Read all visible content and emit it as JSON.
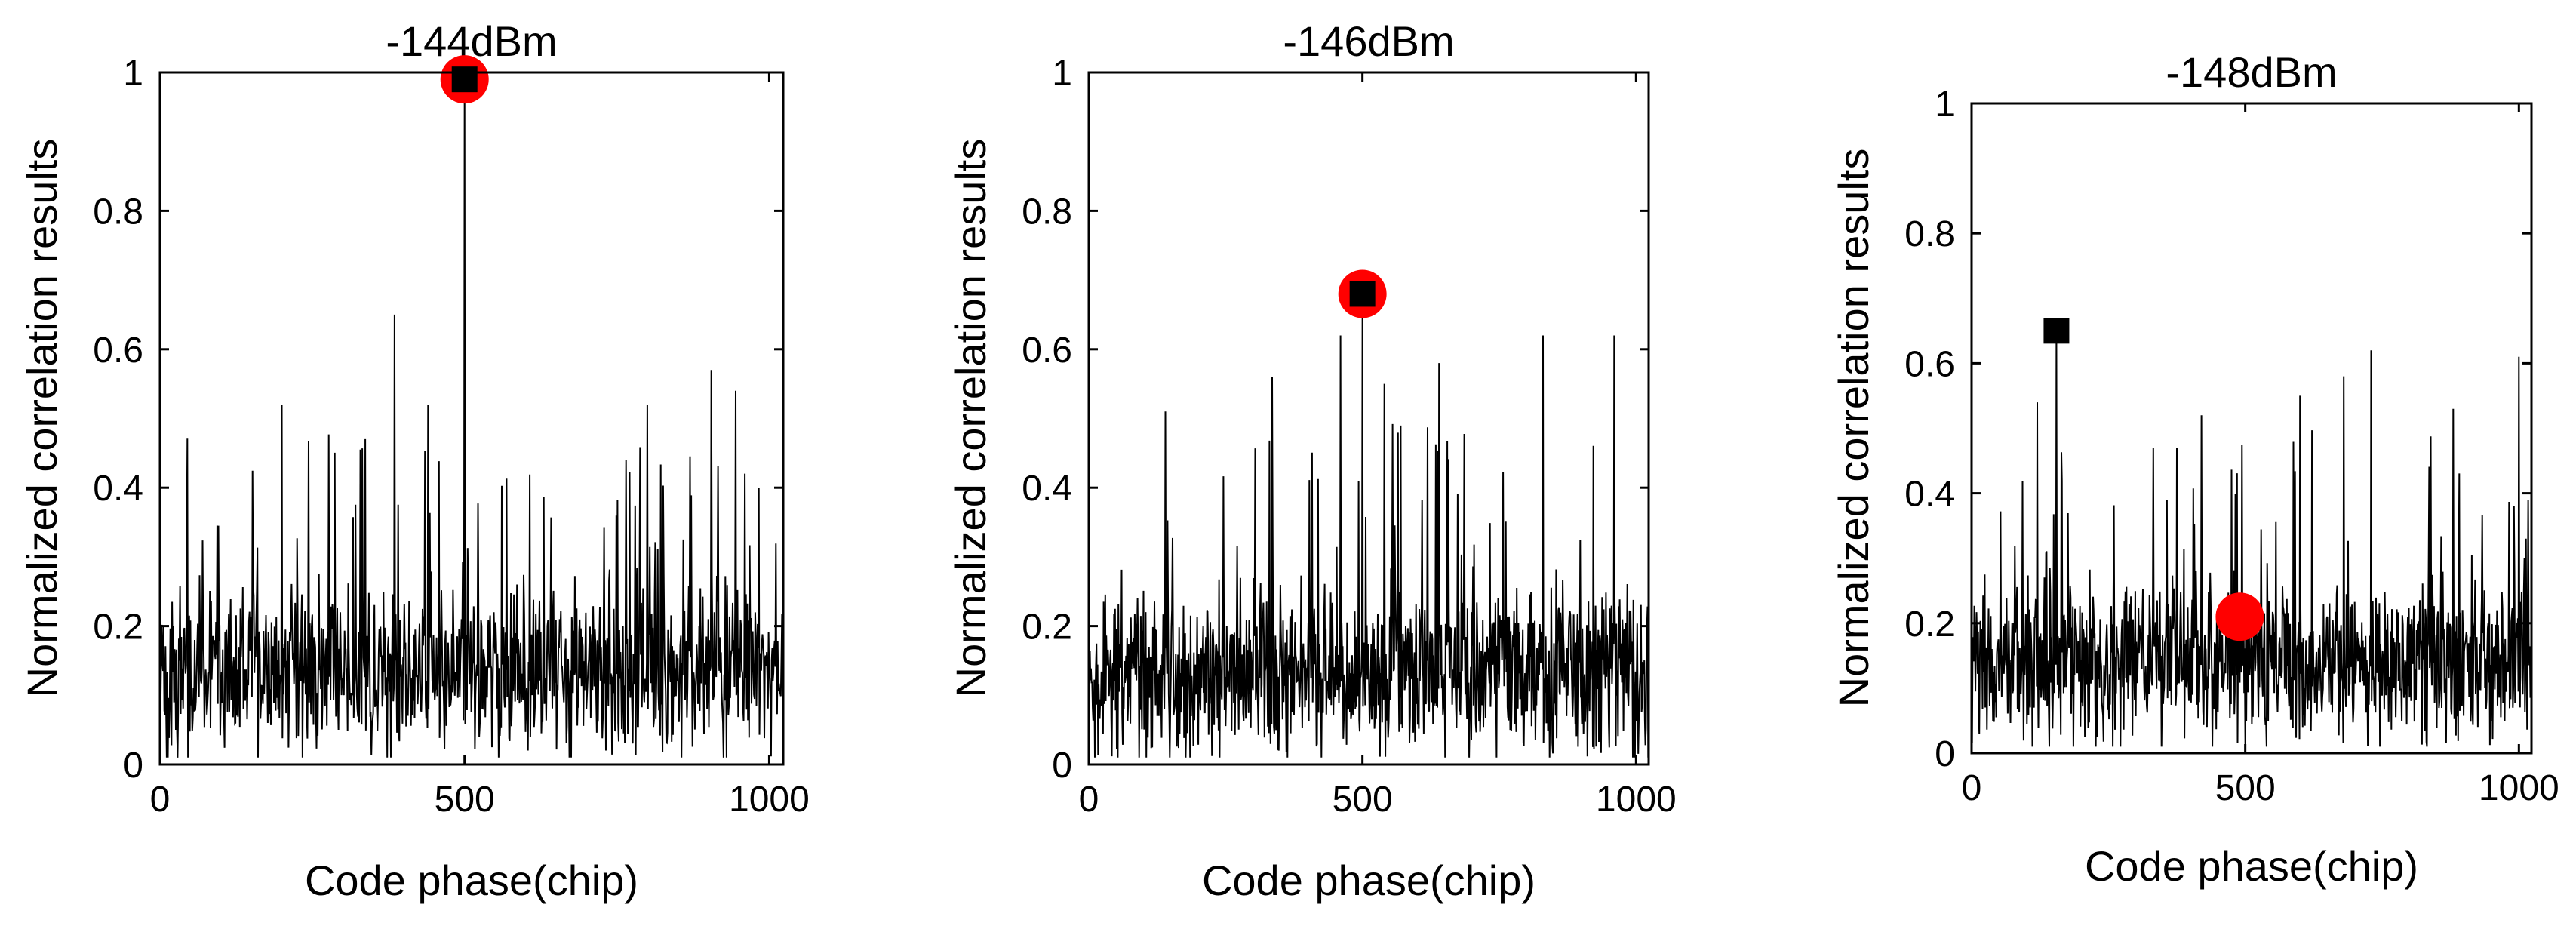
{
  "chart_data": [
    {
      "type": "line",
      "title": "-144dBm",
      "xlabel": "Code phase(chip)",
      "ylabel": "Normalized correlation results",
      "xlim": [
        0,
        1023
      ],
      "ylim": [
        0,
        1
      ],
      "xticks": [
        "0",
        "500",
        "1000"
      ],
      "yticks": [
        "0",
        "0.2",
        "0.4",
        "0.6",
        "0.8",
        "1"
      ],
      "grid": false,
      "noise": {
        "seed": 144,
        "baseline": 0.13,
        "spread": 0.09,
        "spike_rate": 0.06,
        "spike_max": 0.53
      },
      "spikes": [
        {
          "x": 200,
          "y": 0.52
        },
        {
          "x": 385,
          "y": 0.65
        },
        {
          "x": 440,
          "y": 0.52
        },
        {
          "x": 800,
          "y": 0.52
        },
        {
          "x": 905,
          "y": 0.57
        },
        {
          "x": 945,
          "y": 0.54
        }
      ],
      "peak": {
        "x": 500,
        "y": 0.99
      },
      "square_marker": {
        "x": 500,
        "y": 0.99,
        "color": "#000000"
      },
      "circle_marker": {
        "x": 500,
        "y": 0.99,
        "color": "#ff0000"
      }
    },
    {
      "type": "line",
      "title": "-146dBm",
      "xlabel": "Code phase(chip)",
      "ylabel": "Normalized correlation results",
      "xlim": [
        0,
        1023
      ],
      "ylim": [
        0,
        1
      ],
      "xticks": [
        "0",
        "500",
        "1000"
      ],
      "yticks": [
        "0",
        "0.2",
        "0.4",
        "0.6",
        "0.8",
        "1"
      ],
      "grid": false,
      "noise": {
        "seed": 146,
        "baseline": 0.13,
        "spread": 0.09,
        "spike_rate": 0.06,
        "spike_max": 0.55
      },
      "spikes": [
        {
          "x": 140,
          "y": 0.51
        },
        {
          "x": 335,
          "y": 0.56
        },
        {
          "x": 460,
          "y": 0.62
        },
        {
          "x": 540,
          "y": 0.55
        },
        {
          "x": 640,
          "y": 0.58
        },
        {
          "x": 830,
          "y": 0.62
        },
        {
          "x": 960,
          "y": 0.62
        }
      ],
      "peak": {
        "x": 500,
        "y": 0.68
      },
      "square_marker": {
        "x": 500,
        "y": 0.68,
        "color": "#000000"
      },
      "circle_marker": {
        "x": 500,
        "y": 0.68,
        "color": "#ff0000"
      }
    },
    {
      "type": "line",
      "title": "-148dBm",
      "xlabel": "Code phase(chip)",
      "ylabel": "Normalized correlation results",
      "xlim": [
        0,
        1023
      ],
      "ylim": [
        0,
        1
      ],
      "xticks": [
        "0",
        "500",
        "1000"
      ],
      "yticks": [
        "0",
        "0.2",
        "0.4",
        "0.6",
        "0.8",
        "1"
      ],
      "grid": false,
      "noise": {
        "seed": 148,
        "baseline": 0.14,
        "spread": 0.09,
        "spike_rate": 0.06,
        "spike_max": 0.55
      },
      "spikes": [
        {
          "x": 120,
          "y": 0.54
        },
        {
          "x": 420,
          "y": 0.52
        },
        {
          "x": 600,
          "y": 0.55
        },
        {
          "x": 680,
          "y": 0.58
        },
        {
          "x": 730,
          "y": 0.62
        },
        {
          "x": 880,
          "y": 0.53
        },
        {
          "x": 1000,
          "y": 0.61
        }
      ],
      "peak": {
        "x": 155,
        "y": 0.65
      },
      "square_marker": {
        "x": 155,
        "y": 0.65,
        "color": "#000000"
      },
      "circle_marker": {
        "x": 490,
        "y": 0.21,
        "color": "#ff0000"
      }
    }
  ]
}
